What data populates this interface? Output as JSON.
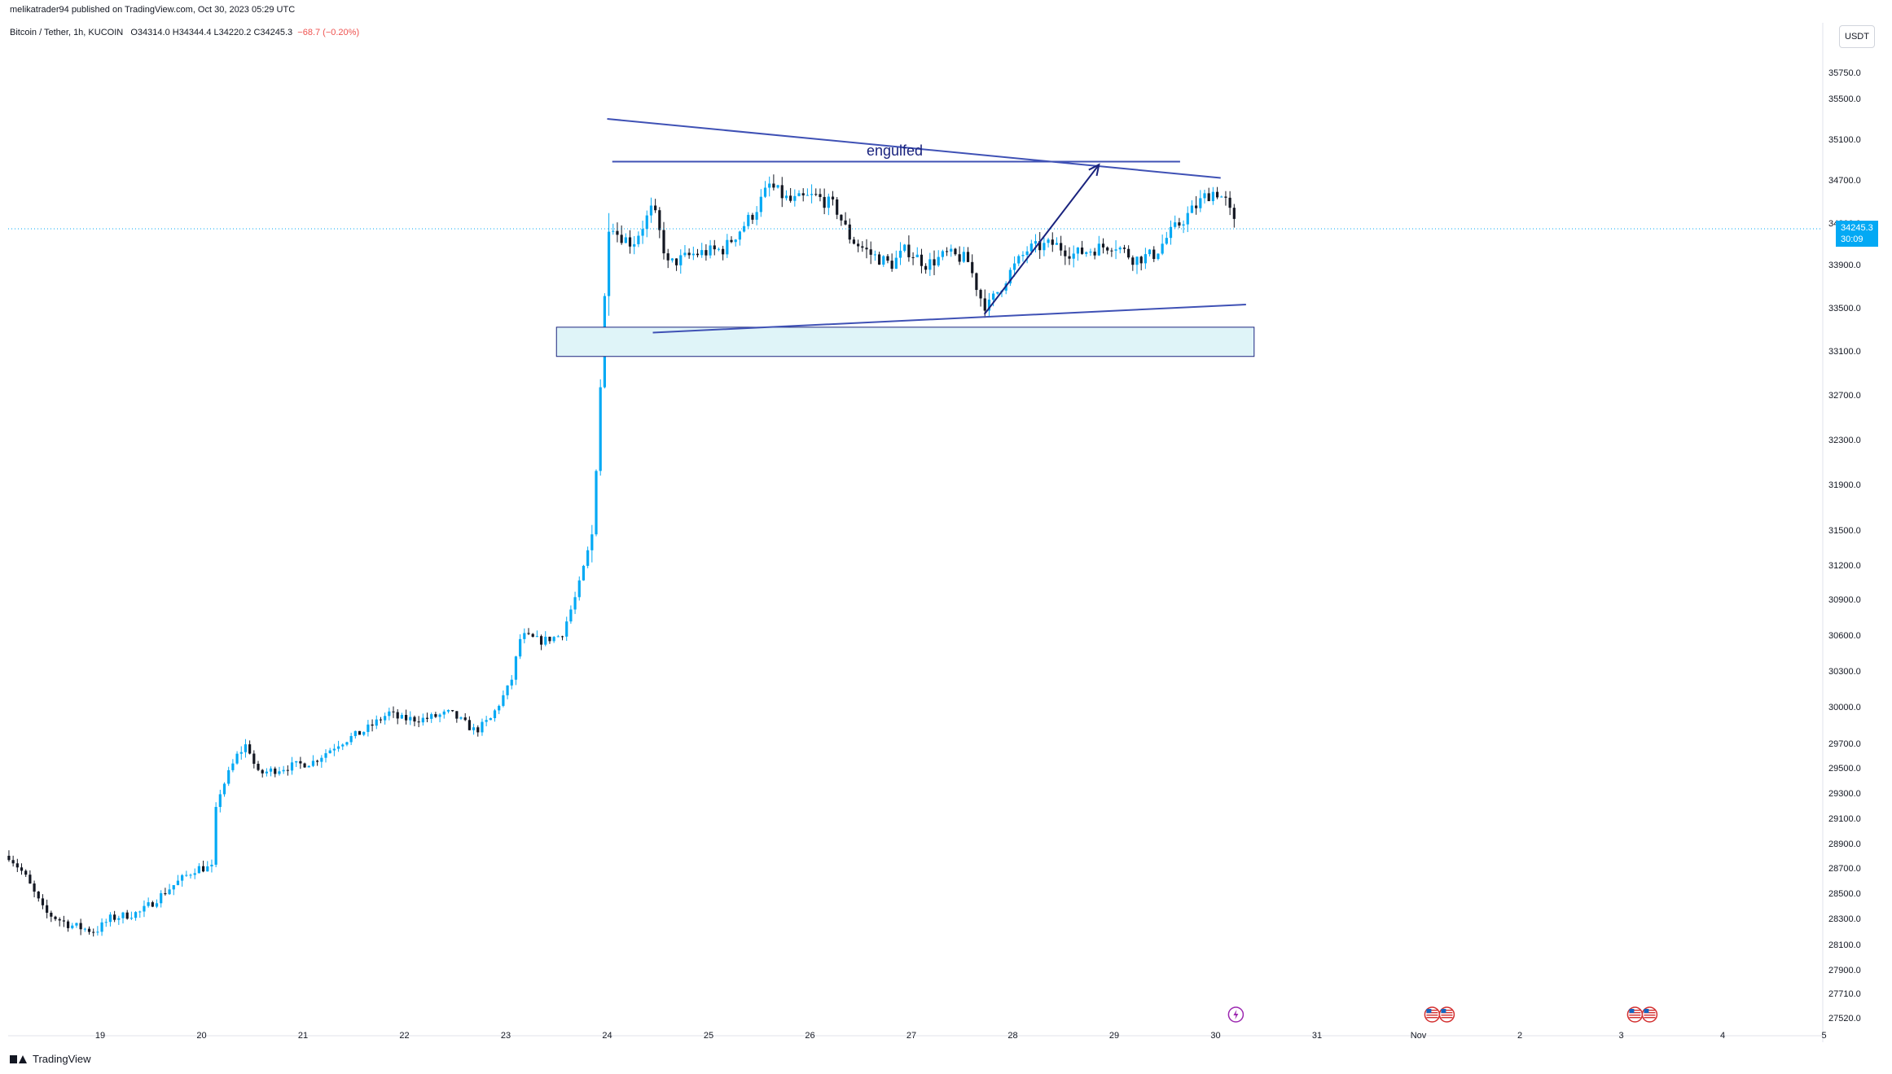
{
  "header": {
    "attribution": "melikatrader94 published on TradingView.com, Oct 30, 2023 05:29 UTC",
    "symbol": "Bitcoin / Tether, 1h, KUCOIN",
    "ohlc": "O34314.0  H34344.4  L34220.2  C34245.3",
    "change": "−68.7 (−0.20%)"
  },
  "currency": "USDT",
  "price_tag": {
    "price": "34245.3",
    "countdown": "30:09"
  },
  "footer": {
    "brand": "TradingView"
  },
  "colors": {
    "up": "#26a69a",
    "down": "#131722",
    "candle_up": "#03a9f4",
    "candle_down": "#131722",
    "trendline": "#3f51b5",
    "arrow": "#1a237e",
    "zone_fill": "#dff4f8",
    "zone_border": "#1a237e",
    "price_line": "#03a9f4"
  },
  "annotations": {
    "engulfed_label": "engulfed"
  },
  "chart_data": {
    "type": "candlestick",
    "title": "Bitcoin / Tether, 1h, KUCOIN",
    "xlabel": "",
    "ylabel": "",
    "y_ticks": [
      35750,
      35500,
      35100,
      34700,
      34300,
      33900,
      33500,
      33100,
      32700,
      32300,
      31900,
      31500,
      31200,
      30900,
      30600,
      30300,
      30000,
      29700,
      29500,
      29300,
      29100,
      28900,
      28700,
      28500,
      28300,
      28100,
      27900,
      27710,
      27520
    ],
    "y_tick_labels": [
      "35750.0",
      "35500.0",
      "35100.0",
      "34700.0",
      "34300.0",
      "33900.0",
      "33500.0",
      "33100.0",
      "32700.0",
      "32300.0",
      "31900.0",
      "31500.0",
      "31200.0",
      "30900.0",
      "30600.0",
      "30300.0",
      "30000.0",
      "29700.0",
      "29500.0",
      "29300.0",
      "29100.0",
      "28900.0",
      "28700.0",
      "28500.0",
      "28300.0",
      "28100.0",
      "27900.0",
      "27710.0",
      "27520.0"
    ],
    "ylim": [
      27500,
      36050
    ],
    "x_ticks": [
      "19",
      "20",
      "21",
      "22",
      "23",
      "24",
      "25",
      "26",
      "27",
      "28",
      "29",
      "30",
      "31",
      "Nov",
      "2",
      "3",
      "4",
      "5"
    ],
    "last_price": 34245.3,
    "daily_closes_approx": [
      {
        "day": "19",
        "close": 28300
      },
      {
        "day": "20",
        "close": 28700
      },
      {
        "day": "21",
        "close": 29700
      },
      {
        "day": "22",
        "close": 30000
      },
      {
        "day": "23",
        "close": 30700
      },
      {
        "day": "24",
        "close": 34300
      },
      {
        "day": "25",
        "close": 34200
      },
      {
        "day": "26",
        "close": 34300
      },
      {
        "day": "27",
        "close": 33800
      },
      {
        "day": "28",
        "close": 34050
      },
      {
        "day": "29",
        "close": 34100
      },
      {
        "day": "30",
        "close": 34245.3
      }
    ],
    "events": [
      {
        "day": "30",
        "icon": "lightning"
      },
      {
        "day": "1",
        "icon": "us-flag"
      },
      {
        "day": "3",
        "icon": "us-flag"
      }
    ],
    "drawings": {
      "upper_trendline": {
        "from": {
          "day": 24.0,
          "price": 35300
        },
        "to": {
          "day": 30.05,
          "price": 34720
        }
      },
      "lower_trendline": {
        "from": {
          "day": 24.45,
          "price": 33270
        },
        "to": {
          "day": 30.3,
          "price": 33530
        }
      },
      "horizontal_resistance": {
        "from_day": 24.05,
        "to_day": 29.65,
        "price": 34880
      },
      "support_zone": {
        "from_day": 23.5,
        "to_day": 30.38,
        "price_high": 33320,
        "price_low": 33050
      },
      "arrow": {
        "from": {
          "day": 27.72,
          "price": 33440
        },
        "to": {
          "day": 28.85,
          "price": 34850
        }
      }
    }
  }
}
